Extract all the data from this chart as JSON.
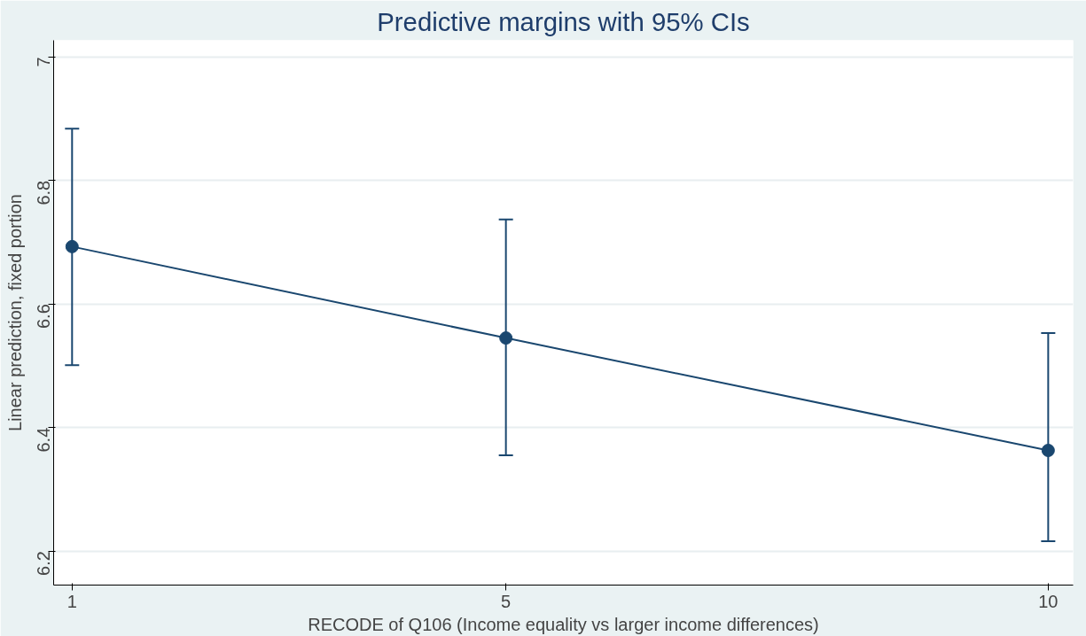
{
  "chart_data": {
    "type": "line",
    "title": "Predictive margins with 95% CIs",
    "xlabel": "RECODE of Q106 (Income equality vs larger income differences)",
    "ylabel": "Linear prediction, fixed portion",
    "x": [
      1,
      5,
      10
    ],
    "series": [
      {
        "color": "#1a476f",
        "values": [
          6.693,
          6.545,
          6.363
        ],
        "errors": [
          [
            6.501,
            6.884
          ],
          [
            6.355,
            6.737
          ],
          [
            6.216,
            6.553
          ]
        ]
      }
    ],
    "xlim": [
      0.83,
      10.23
    ],
    "xticks": [
      1,
      5,
      10
    ],
    "ylim": [
      6.145,
      7.027
    ],
    "yticks": [
      6.2,
      6.4,
      6.6,
      6.8,
      7
    ],
    "grid": "y",
    "marker": "circle",
    "line_style": "solid"
  }
}
